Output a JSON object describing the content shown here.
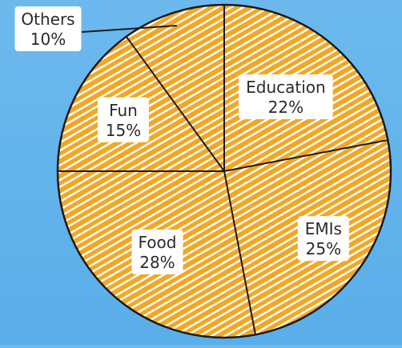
{
  "colors": {
    "background": "#63b4ec",
    "pie_fill": "#ffffff",
    "hatch": "#f5a623",
    "stroke": "#1a1a1a",
    "text": "#2a2a2a"
  },
  "chart_data": {
    "type": "pie",
    "title": "",
    "slices": [
      {
        "label": "Education",
        "pct_label": "22%",
        "value": 22
      },
      {
        "label": "EMIs",
        "pct_label": "25%",
        "value": 25
      },
      {
        "label": "Food",
        "pct_label": "28%",
        "value": 28
      },
      {
        "label": "Fun",
        "pct_label": "15%",
        "value": 15
      },
      {
        "label": "Others",
        "pct_label": "10%",
        "value": 10
      }
    ],
    "legend": "none",
    "style": "hand-drawn hatched"
  }
}
